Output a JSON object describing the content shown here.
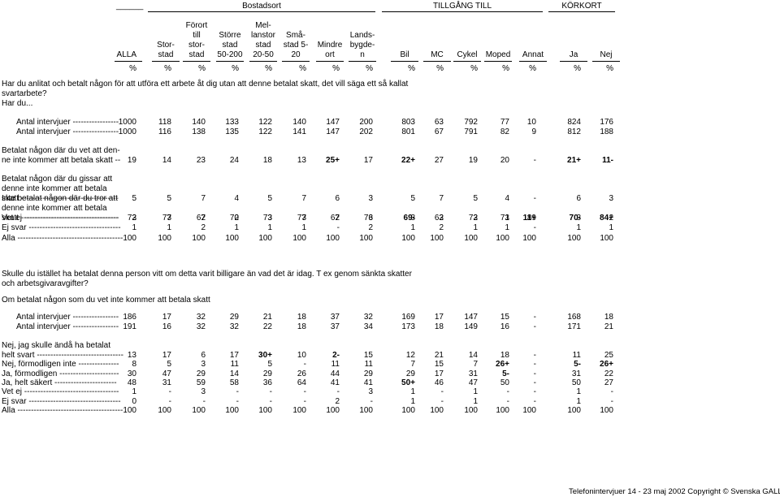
{
  "top_left_blank": "______",
  "groups": [
    {
      "label": "Bostadsort"
    },
    {
      "label": "TILLGÅNG TILL"
    },
    {
      "label": "KÖRKORT"
    }
  ],
  "columns": [
    {
      "lines": [
        "ALLA"
      ]
    },
    {
      "lines": [
        "Stor-",
        "stad"
      ]
    },
    {
      "lines": [
        "Förort",
        "till",
        "stor-",
        "stad"
      ]
    },
    {
      "lines": [
        "Större",
        "stad",
        "50-200"
      ]
    },
    {
      "lines": [
        "Mel-",
        "lanstor",
        "stad",
        "20-50"
      ]
    },
    {
      "lines": [
        "Små-",
        "stad 5-",
        "20"
      ]
    },
    {
      "lines": [
        "Mindre",
        "ort"
      ]
    },
    {
      "lines": [
        "Lands-",
        "bygde-",
        "n"
      ]
    },
    {
      "lines": [
        "Bil"
      ]
    },
    {
      "lines": [
        "MC"
      ]
    },
    {
      "lines": [
        "Cykel"
      ]
    },
    {
      "lines": [
        "Moped"
      ]
    },
    {
      "lines": [
        "Annat"
      ]
    },
    {
      "lines": [
        "Ja"
      ]
    },
    {
      "lines": [
        "Nej"
      ]
    }
  ],
  "percent_sign": "%",
  "questions": [
    {
      "lines": [
        "Har du anlitat och betalt någon för att utföra ett arbete åt dig utan att denne betalat skatt, det vill säga ett så kallat",
        "svartarbete?",
        "Har du..."
      ]
    },
    {
      "lines": [
        "Skulle du istället ha betalat denna person vitt om detta varit billigare än vad det är idag. T ex genom sänkta skatter",
        "och arbetsgivaravgifter?"
      ]
    },
    {
      "lines": [
        "Om betalat någon som du vet inte kommer att betala skatt"
      ]
    }
  ],
  "rows": [
    {
      "label": [
        "Antal intervjuer  -----------------"
      ],
      "indent": true,
      "values": [
        "1000",
        "118",
        "140",
        "133",
        "122",
        "140",
        "147",
        "200",
        "803",
        "63",
        "792",
        "77",
        "10",
        "824",
        "176"
      ]
    },
    {
      "label": [
        "Antal intervjuer  -----------------"
      ],
      "indent": true,
      "values": [
        "1000",
        "116",
        "138",
        "135",
        "122",
        "141",
        "147",
        "202",
        "801",
        "67",
        "791",
        "82",
        "9",
        "812",
        "188"
      ]
    },
    {
      "label": [
        "Betalat någon där du vet att den-",
        "ne inte kommer att betala skatt  --"
      ],
      "values": [
        "19",
        "14",
        "23",
        "24",
        "18",
        "13",
        "25+",
        "17",
        "22+",
        "27",
        "19",
        "20",
        "-",
        "21+",
        "11-"
      ]
    },
    {
      "label": [
        "Betalat någon där du gissar att",
        "denne inte kommer att betala",
        "skatt  ------------------------------------"
      ],
      "values": [
        "5",
        "5",
        "7",
        "4",
        "5",
        "7",
        "6",
        "3",
        "5",
        "7",
        "5",
        "4",
        "-",
        "6",
        "3"
      ]
    },
    {
      "label": [
        "Inte betalat någon där du tror att",
        "denne inte kommer att betala",
        "skatt  ------------------------------------"
      ],
      "values": [
        "72",
        "77",
        "67",
        "70",
        "73",
        "77",
        "67",
        "76",
        "69-",
        "63",
        "73",
        "73",
        "89",
        "70-",
        "84+"
      ]
    },
    {
      "label": [
        "Vet ej  -----------------------------------"
      ],
      "values": [
        "3",
        "3",
        "2",
        "2",
        "3",
        "3",
        "2",
        "3",
        "3",
        "2",
        "2",
        "1",
        "11+",
        "3",
        "2"
      ]
    },
    {
      "label": [
        "Ej svar  ----------------------------------"
      ],
      "values": [
        "1",
        "1",
        "2",
        "1",
        "1",
        "1",
        "-",
        "2",
        "1",
        "2",
        "1",
        "1",
        "-",
        "1",
        "1"
      ]
    },
    {
      "label": [
        "Alla  ---------------------------------------"
      ],
      "values": [
        "100",
        "100",
        "100",
        "100",
        "100",
        "100",
        "100",
        "100",
        "100",
        "100",
        "100",
        "100",
        "100",
        "100",
        "100"
      ]
    },
    {
      "label": [
        "Antal intervjuer  -----------------"
      ],
      "indent": true,
      "values": [
        "186",
        "17",
        "32",
        "29",
        "21",
        "18",
        "37",
        "32",
        "169",
        "17",
        "147",
        "15",
        "-",
        "168",
        "18"
      ]
    },
    {
      "label": [
        "Antal intervjuer  -----------------"
      ],
      "indent": true,
      "values": [
        "191",
        "16",
        "32",
        "32",
        "22",
        "18",
        "37",
        "34",
        "173",
        "18",
        "149",
        "16",
        "-",
        "171",
        "21"
      ]
    },
    {
      "label": [
        "Nej, jag skulle ändå ha betalat",
        "helt svart  --------------------------------"
      ],
      "values": [
        "13",
        "17",
        "6",
        "17",
        "30+",
        "10",
        "2-",
        "15",
        "12",
        "21",
        "14",
        "18",
        "-",
        "11",
        "25"
      ]
    },
    {
      "label": [
        "Nej, förmodligen inte  ---------------"
      ],
      "values": [
        "8",
        "5",
        "3",
        "11",
        "5",
        "-",
        "11",
        "11",
        "7",
        "15",
        "7",
        "26+",
        "-",
        "5-",
        "26+"
      ]
    },
    {
      "label": [
        "Ja, förmodligen  ----------------------"
      ],
      "values": [
        "30",
        "47",
        "29",
        "14",
        "29",
        "26",
        "44",
        "29",
        "29",
        "17",
        "31",
        "5-",
        "-",
        "31",
        "22"
      ]
    },
    {
      "label": [
        "Ja, helt säkert  -----------------------"
      ],
      "values": [
        "48",
        "31",
        "59",
        "58",
        "36",
        "64",
        "41",
        "41",
        "50+",
        "46",
        "47",
        "50",
        "-",
        "50",
        "27"
      ]
    },
    {
      "label": [
        "Vet ej  -----------------------------------"
      ],
      "values": [
        "1",
        "-",
        "3",
        "-",
        "-",
        "-",
        "-",
        "3",
        "1",
        "-",
        "1",
        "-",
        "-",
        "1",
        "-"
      ]
    },
    {
      "label": [
        "Ej svar  ----------------------------------"
      ],
      "values": [
        "0",
        "-",
        "-",
        "-",
        "-",
        "-",
        "2",
        "-",
        "1",
        "-",
        "1",
        "-",
        "-",
        "1",
        "-"
      ]
    },
    {
      "label": [
        "Alla  ---------------------------------------"
      ],
      "values": [
        "100",
        "100",
        "100",
        "100",
        "100",
        "100",
        "100",
        "100",
        "100",
        "100",
        "100",
        "100",
        "100",
        "100",
        "100"
      ]
    }
  ],
  "footer": "Telefonintervjuer 14 - 23 maj 2002 Copyright © Svenska GALLUP"
}
